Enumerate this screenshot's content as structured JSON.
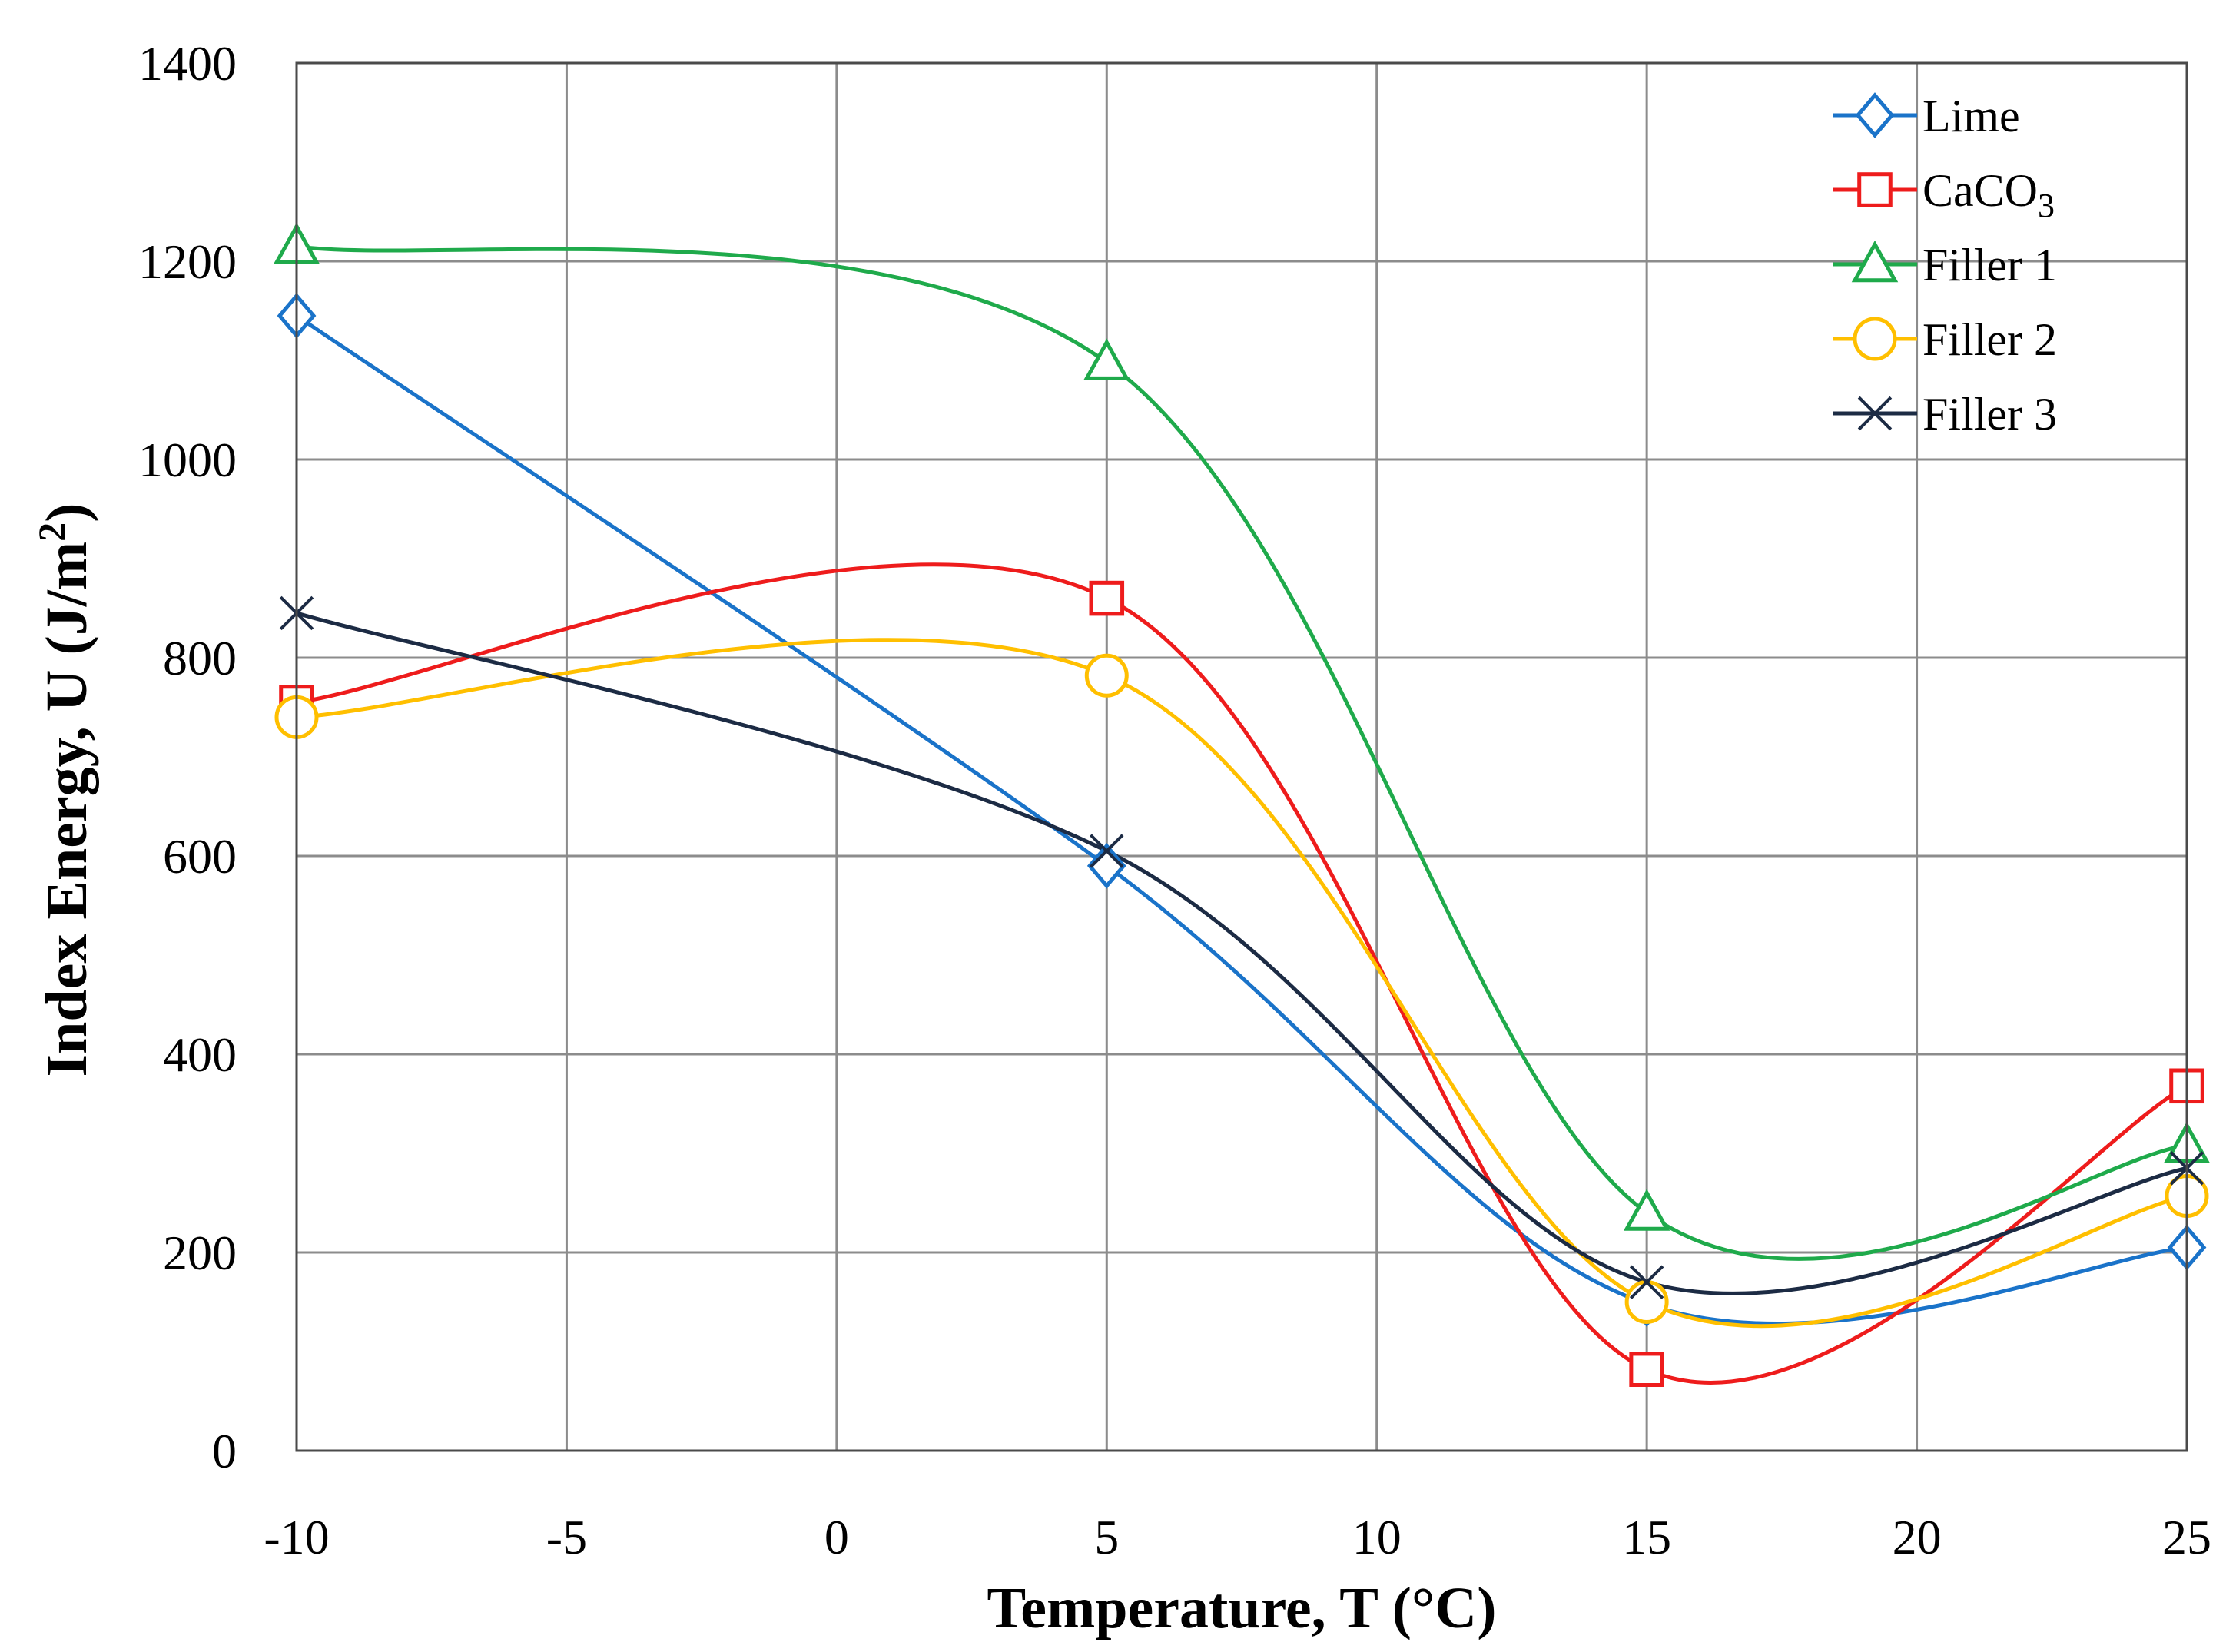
{
  "chart_data": {
    "type": "line",
    "title": "",
    "xlabel": "Temperature, T (°C)",
    "ylabel": {
      "main": "Index Energy, U (J/m",
      "sup": "2",
      "end": ")"
    },
    "xlim": [
      -10,
      25
    ],
    "ylim": [
      0,
      1400
    ],
    "xticks": [
      -10,
      -5,
      0,
      5,
      10,
      15,
      20,
      25
    ],
    "yticks": [
      0,
      200,
      400,
      600,
      800,
      1000,
      1200,
      1400
    ],
    "x": [
      -10,
      5,
      15,
      25
    ],
    "grid": true,
    "smooth": true,
    "legend_position": "top-right",
    "series": [
      {
        "name": "Lime",
        "label_main": "Lime",
        "label_sub": "",
        "color": "#1a73c9",
        "marker": "diamond",
        "values": [
          1145,
          590,
          148,
          205
        ]
      },
      {
        "name": "CaCO3",
        "label_main": "CaCO",
        "label_sub": "3",
        "color": "#ee1c1c",
        "marker": "square",
        "values": [
          755,
          860,
          82,
          368
        ]
      },
      {
        "name": "Filler 1",
        "label_main": "Filler 1",
        "label_sub": "",
        "color": "#1faa4b",
        "marker": "triangle",
        "values": [
          1215,
          1098,
          240,
          308
        ]
      },
      {
        "name": "Filler 2",
        "label_main": "Filler 2",
        "label_sub": "",
        "color": "#ffbf00",
        "marker": "circle",
        "values": [
          740,
          782,
          150,
          257
        ]
      },
      {
        "name": "Filler 3",
        "label_main": "Filler 3",
        "label_sub": "",
        "color": "#1c2b44",
        "marker": "x",
        "values": [
          845,
          605,
          170,
          285
        ]
      }
    ]
  }
}
